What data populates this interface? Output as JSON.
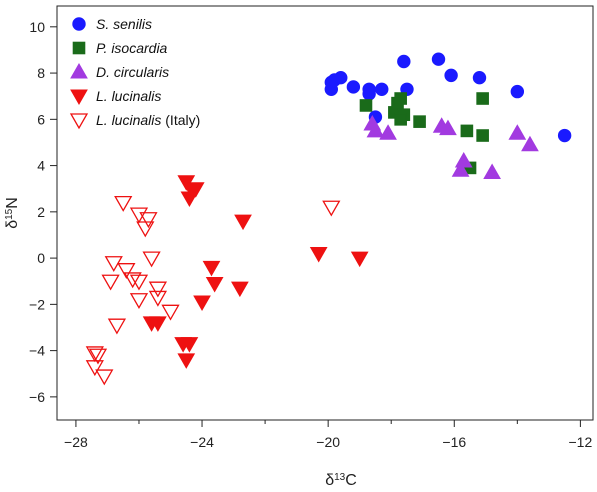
{
  "chart_data": {
    "type": "scatter",
    "xlabel": {
      "base": "δ",
      "sup": "13",
      "unit": "C"
    },
    "ylabel": {
      "base": "δ",
      "sup": "15",
      "unit": "N"
    },
    "xlim": [
      -28.6,
      -11.6
    ],
    "ylim": [
      -7.0,
      10.9
    ],
    "x_ticks": [
      -28,
      -24,
      -20,
      -16,
      -12
    ],
    "x_minor_ticks": [
      -26,
      -22,
      -18,
      -14
    ],
    "y_ticks": [
      -6,
      -4,
      -2,
      0,
      2,
      4,
      6,
      8,
      10
    ],
    "legend_position": "top-left",
    "series": [
      {
        "name": "S. senilis",
        "name_suffix": "",
        "marker": "circle",
        "filled": true,
        "color": "#1a1aff",
        "points": [
          [
            -19.9,
            7.3
          ],
          [
            -19.9,
            7.6
          ],
          [
            -19.8,
            7.7
          ],
          [
            -19.6,
            7.8
          ],
          [
            -19.2,
            7.4
          ],
          [
            -18.7,
            7.1
          ],
          [
            -18.7,
            7.3
          ],
          [
            -18.3,
            7.3
          ],
          [
            -18.5,
            6.1
          ],
          [
            -17.5,
            7.3
          ],
          [
            -17.6,
            8.5
          ],
          [
            -16.5,
            8.6
          ],
          [
            -16.1,
            7.9
          ],
          [
            -15.2,
            7.8
          ],
          [
            -14.0,
            7.2
          ],
          [
            -12.5,
            5.3
          ]
        ]
      },
      {
        "name": "P. isocardia",
        "name_suffix": "",
        "marker": "square",
        "filled": true,
        "color": "#1a6b1a",
        "points": [
          [
            -18.8,
            6.6
          ],
          [
            -17.9,
            6.3
          ],
          [
            -17.8,
            6.7
          ],
          [
            -17.6,
            6.2
          ],
          [
            -17.7,
            6.9
          ],
          [
            -17.7,
            6.0
          ],
          [
            -17.1,
            5.9
          ],
          [
            -15.6,
            5.5
          ],
          [
            -15.1,
            5.3
          ],
          [
            -15.1,
            6.9
          ],
          [
            -15.5,
            3.9
          ]
        ]
      },
      {
        "name": "D. circularis",
        "name_suffix": "",
        "marker": "triangle-up",
        "filled": true,
        "color": "#a23ae0",
        "points": [
          [
            -18.6,
            5.8
          ],
          [
            -18.5,
            5.5
          ],
          [
            -18.1,
            5.4
          ],
          [
            -16.4,
            5.7
          ],
          [
            -16.2,
            5.6
          ],
          [
            -15.7,
            4.2
          ],
          [
            -15.8,
            3.8
          ],
          [
            -14.8,
            3.7
          ],
          [
            -14.0,
            5.4
          ],
          [
            -13.6,
            4.9
          ]
        ]
      },
      {
        "name": "L. lucinalis",
        "name_suffix": "",
        "marker": "triangle-down",
        "filled": true,
        "color": "#ee1111",
        "points": [
          [
            -24.5,
            3.3
          ],
          [
            -24.3,
            2.9
          ],
          [
            -24.4,
            2.6
          ],
          [
            -24.2,
            3.0
          ],
          [
            -22.7,
            1.6
          ],
          [
            -20.3,
            0.2
          ],
          [
            -19.0,
            0.0
          ],
          [
            -23.7,
            -0.4
          ],
          [
            -23.6,
            -1.1
          ],
          [
            -22.8,
            -1.3
          ],
          [
            -24.0,
            -1.9
          ],
          [
            -25.6,
            -2.8
          ],
          [
            -25.4,
            -2.8
          ],
          [
            -24.6,
            -3.7
          ],
          [
            -24.4,
            -3.7
          ],
          [
            -24.5,
            -4.4
          ]
        ]
      },
      {
        "name": "L. lucinalis",
        "name_suffix": " (Italy)",
        "marker": "triangle-down",
        "filled": false,
        "color": "#ee1111",
        "points": [
          [
            -26.5,
            2.4
          ],
          [
            -26.0,
            1.9
          ],
          [
            -25.7,
            1.7
          ],
          [
            -25.8,
            1.3
          ],
          [
            -19.9,
            2.2
          ],
          [
            -26.8,
            -0.2
          ],
          [
            -26.4,
            -0.5
          ],
          [
            -26.2,
            -0.9
          ],
          [
            -25.6,
            0.0
          ],
          [
            -26.9,
            -1.0
          ],
          [
            -26.0,
            -1.0
          ],
          [
            -25.4,
            -1.3
          ],
          [
            -25.4,
            -1.7
          ],
          [
            -26.0,
            -1.8
          ],
          [
            -25.0,
            -2.3
          ],
          [
            -26.7,
            -2.9
          ],
          [
            -27.4,
            -4.1
          ],
          [
            -27.3,
            -4.2
          ],
          [
            -27.4,
            -4.7
          ],
          [
            -27.1,
            -5.1
          ]
        ]
      }
    ]
  }
}
